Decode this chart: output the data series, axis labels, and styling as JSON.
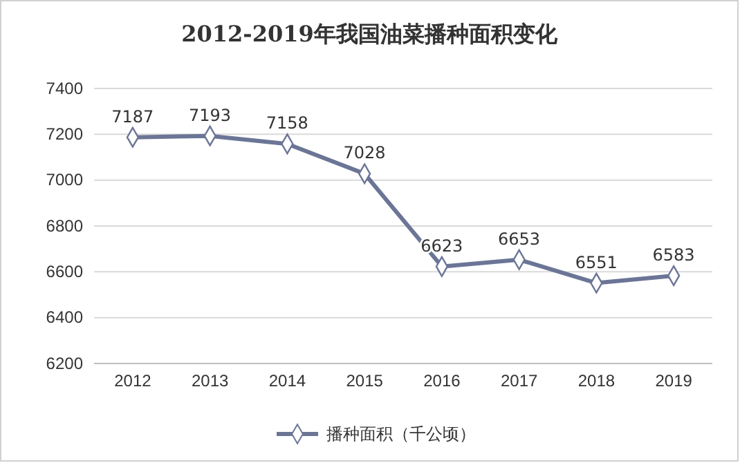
{
  "chart_data": {
    "type": "line",
    "title": "2012-2019年我国油菜播种面积变化",
    "categories": [
      "2012",
      "2013",
      "2014",
      "2015",
      "2016",
      "2017",
      "2018",
      "2019"
    ],
    "series": [
      {
        "name": "播种面积（千公顷）",
        "color": "#6b7596",
        "values": [
          7187,
          7193,
          7158,
          7028,
          6623,
          6653,
          6551,
          6583
        ]
      }
    ],
    "ylim": [
      6200,
      7400
    ],
    "yticks": [
      6200,
      6400,
      6600,
      6800,
      7000,
      7200,
      7400
    ],
    "grid": "y",
    "legend": "bottom",
    "marker": "diamond",
    "data_labels": true
  }
}
